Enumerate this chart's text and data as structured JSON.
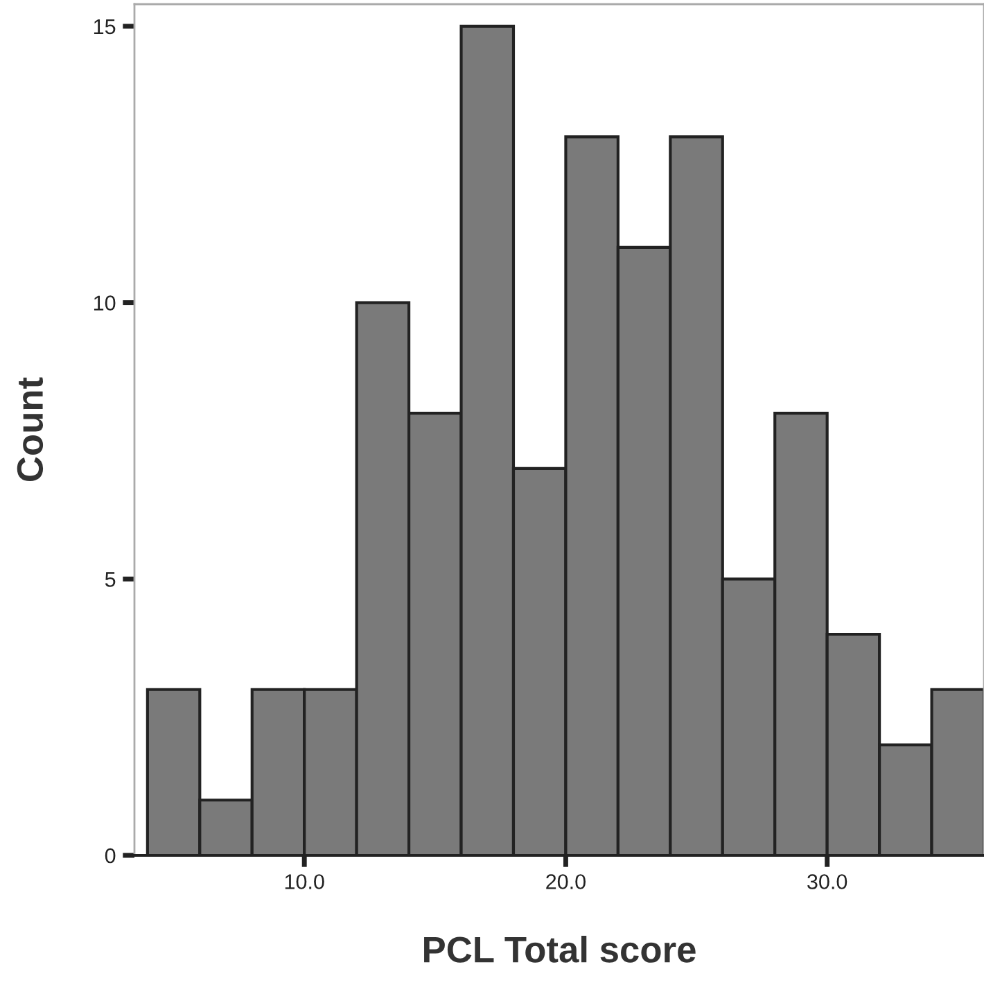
{
  "chart_data": {
    "type": "histogram",
    "xlabel": "PCL Total score",
    "ylabel": "Count",
    "bins": [
      4,
      6,
      8,
      10,
      12,
      14,
      16,
      18,
      20,
      22,
      24,
      26,
      28,
      30,
      32,
      34,
      36
    ],
    "values": [
      3,
      1,
      3,
      3,
      10,
      8,
      15,
      7,
      13,
      11,
      13,
      5,
      8,
      4,
      2,
      3
    ],
    "color": "#7a7a7a",
    "xlim": [
      3.5,
      36
    ],
    "ylim": [
      0,
      15.4
    ],
    "xticks": [
      {
        "value": 10,
        "label": "10.0"
      },
      {
        "value": 20,
        "label": "20.0"
      },
      {
        "value": 30,
        "label": "30.0"
      }
    ],
    "yticks": [
      0,
      5,
      10,
      15
    ],
    "grid": false
  }
}
